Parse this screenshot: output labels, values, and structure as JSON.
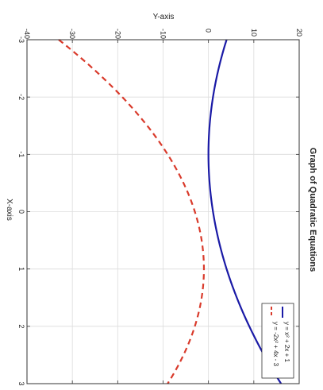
{
  "chart_data": {
    "type": "line",
    "title": "Graph of Quadratic Equations",
    "xlabel": "X-axis",
    "ylabel": "Y-axis",
    "xlim": [
      -3,
      3
    ],
    "ylim": [
      -40,
      20
    ],
    "x_ticks": [
      -3,
      -2,
      -1,
      0,
      1,
      2,
      3
    ],
    "y_ticks": [
      -40,
      -30,
      -20,
      -10,
      0,
      10,
      20
    ],
    "x_tick_labels": [
      "-3",
      "-2",
      "-1",
      "0",
      "1",
      "2",
      "3"
    ],
    "y_tick_labels": [
      "-40",
      "-30",
      "-20",
      "-10",
      "0",
      "10",
      "20"
    ],
    "grid": true,
    "legend_position": "bottom-right",
    "orientation": "rotated-90-clockwise",
    "x": [
      -3,
      -2.5,
      -2,
      -1.5,
      -1,
      -0.5,
      0,
      0.5,
      1,
      1.5,
      2,
      2.5,
      3
    ],
    "series": [
      {
        "name": "y = x² + 2x + 1",
        "color": "#1a1aa6",
        "style": "solid",
        "values": [
          4,
          2.25,
          1,
          0.25,
          0,
          0.25,
          1,
          2.25,
          4,
          6.25,
          9,
          12.25,
          16
        ]
      },
      {
        "name": "y = -2x² + 4x - 3",
        "color": "#d93a2b",
        "style": "dashed",
        "values": [
          -33,
          -25.5,
          -19,
          -13.5,
          -9,
          -5.5,
          -3,
          -1.5,
          -1,
          -1.5,
          -3,
          -5.5,
          -9
        ]
      }
    ]
  }
}
